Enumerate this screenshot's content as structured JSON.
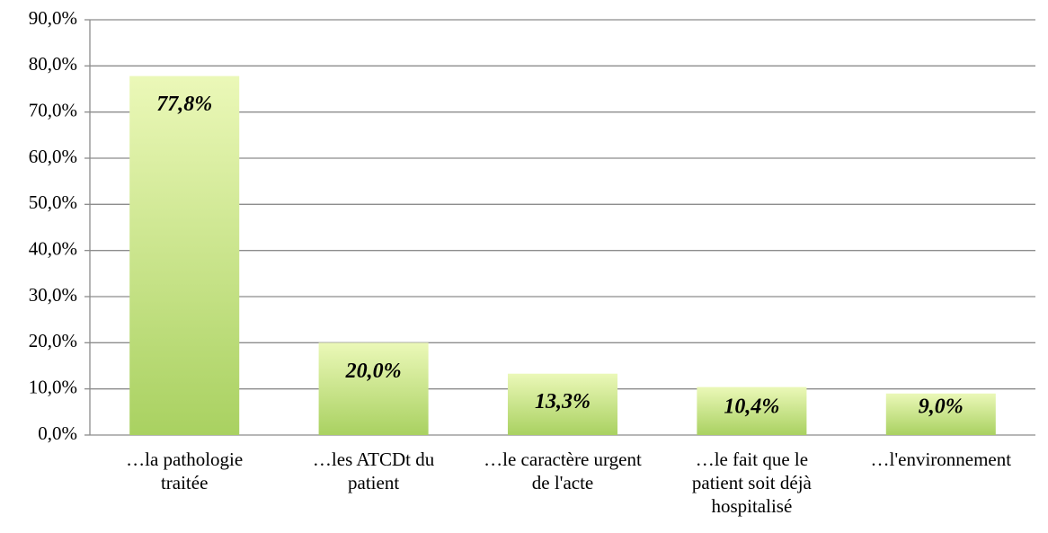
{
  "chart_data": {
    "type": "bar",
    "categories": [
      "…la pathologie traitée",
      "…les ATCDt du patient",
      "…le caractère urgent de l'acte",
      "…le fait que le patient soit déjà hospitalisé",
      "…l'environnement"
    ],
    "values": [
      77.8,
      20.0,
      13.3,
      10.4,
      9.0
    ],
    "value_labels": [
      "77,8%",
      "20,0%",
      "13,3%",
      "10,4%",
      "9,0%"
    ],
    "color": "#a9d161",
    "ylim": [
      0,
      90
    ],
    "yticks": [
      {
        "value": 0,
        "label": "0,0%"
      },
      {
        "value": 10,
        "label": "10,0%"
      },
      {
        "value": 20,
        "label": "20,0%"
      },
      {
        "value": 30,
        "label": "30,0%"
      },
      {
        "value": 40,
        "label": "40,0%"
      },
      {
        "value": 50,
        "label": "50,0%"
      },
      {
        "value": 60,
        "label": "60,0%"
      },
      {
        "value": 70,
        "label": "70,0%"
      },
      {
        "value": 80,
        "label": "80,0%"
      },
      {
        "value": 90,
        "label": "90,0%"
      }
    ],
    "grid": true
  }
}
